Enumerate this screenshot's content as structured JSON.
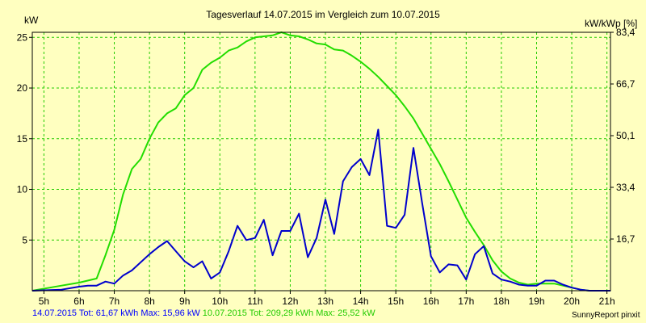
{
  "chart_data": {
    "type": "line",
    "title": "Tagesverlauf 14.07.2015 im Vergleich zum 10.07.2015",
    "ylabel": "kW",
    "y2label": "kW/kWp [%]",
    "xlim": [
      4.67,
      21.1
    ],
    "ylim": [
      0,
      25.5
    ],
    "x_ticks": [
      5,
      6,
      7,
      8,
      9,
      10,
      11,
      12,
      13,
      14,
      15,
      16,
      17,
      18,
      19,
      20,
      21
    ],
    "x_tick_labels": [
      "5h",
      "6h",
      "7h",
      "8h",
      "9h",
      "10h",
      "11h",
      "12h",
      "13h",
      "14h",
      "15h",
      "16h",
      "17h",
      "18h",
      "19h",
      "20h",
      "21h"
    ],
    "y_ticks": [
      5,
      10,
      15,
      20,
      25
    ],
    "y_tick_labels": [
      "5",
      "10",
      "15",
      "20",
      "25"
    ],
    "y2_ticks": [
      5.1,
      10.2,
      15.3,
      20.4,
      25.5
    ],
    "y2_tick_labels": [
      "16,7",
      "33,4",
      "50,1",
      "66,7",
      "83,4"
    ],
    "grid": true,
    "series": [
      {
        "name": "14.07.2015",
        "color": "#0000cc",
        "x": [
          4.67,
          5.5,
          6.0,
          6.25,
          6.5,
          6.75,
          7.0,
          7.25,
          7.5,
          8.0,
          8.25,
          8.5,
          8.75,
          9.0,
          9.25,
          9.5,
          9.75,
          10.0,
          10.25,
          10.5,
          10.75,
          11.0,
          11.25,
          11.5,
          11.75,
          12.0,
          12.25,
          12.5,
          12.75,
          13.0,
          13.25,
          13.5,
          13.75,
          14.0,
          14.25,
          14.5,
          14.75,
          15.0,
          15.25,
          15.5,
          15.75,
          16.0,
          16.25,
          16.5,
          16.75,
          17.0,
          17.25,
          17.5,
          17.75,
          18.0,
          18.25,
          18.5,
          18.75,
          19.0,
          19.25,
          19.5,
          19.75,
          20.0,
          20.25,
          20.5,
          20.75,
          21.1
        ],
        "values": [
          0,
          0.1,
          0.4,
          0.5,
          0.5,
          0.9,
          0.7,
          1.5,
          2.0,
          3.6,
          4.3,
          4.9,
          3.9,
          2.9,
          2.3,
          2.9,
          1.2,
          1.8,
          3.9,
          6.4,
          5.0,
          5.2,
          7.0,
          3.5,
          5.9,
          5.9,
          7.6,
          3.3,
          5.2,
          9.0,
          5.6,
          10.8,
          12.2,
          13.0,
          11.4,
          15.9,
          6.4,
          6.2,
          7.5,
          14.1,
          8.6,
          3.4,
          1.8,
          2.6,
          2.5,
          1.1,
          3.6,
          4.4,
          1.7,
          1.1,
          0.9,
          0.6,
          0.5,
          0.5,
          1.0,
          1.0,
          0.6,
          0.3,
          0.1,
          0,
          0,
          0
        ]
      },
      {
        "name": "10.07.2015",
        "color": "#22dd00",
        "x": [
          4.67,
          5.5,
          6.0,
          6.5,
          6.75,
          7.0,
          7.25,
          7.5,
          7.75,
          8.0,
          8.25,
          8.5,
          8.75,
          9.0,
          9.25,
          9.5,
          9.75,
          10.0,
          10.25,
          10.5,
          10.75,
          11.0,
          11.25,
          11.5,
          11.75,
          12.0,
          12.25,
          12.5,
          12.75,
          13.0,
          13.25,
          13.5,
          13.75,
          14.0,
          14.25,
          14.5,
          14.75,
          15.0,
          15.25,
          15.5,
          15.75,
          16.0,
          16.25,
          16.5,
          16.75,
          17.0,
          17.25,
          17.5,
          17.75,
          18.0,
          18.25,
          18.5,
          18.75,
          19.0,
          19.25,
          19.5,
          19.75,
          20.0,
          20.25,
          20.5,
          20.75,
          21.1
        ],
        "values": [
          0,
          0.5,
          0.8,
          1.2,
          3.5,
          6.0,
          9.5,
          12.0,
          13.0,
          15.0,
          16.6,
          17.5,
          18.0,
          19.3,
          20.0,
          21.8,
          22.5,
          23.0,
          23.7,
          24.0,
          24.6,
          25.0,
          25.1,
          25.2,
          25.5,
          25.2,
          25.1,
          24.8,
          24.4,
          24.3,
          23.8,
          23.7,
          23.2,
          22.6,
          21.9,
          21.1,
          20.2,
          19.3,
          18.2,
          17.0,
          15.5,
          14.0,
          12.5,
          10.8,
          9.0,
          7.2,
          5.8,
          4.5,
          3.0,
          1.9,
          1.2,
          0.8,
          0.6,
          0.7,
          0.7,
          0.7,
          0.5,
          0.3,
          0.1,
          0,
          0,
          0
        ]
      }
    ]
  },
  "footer": {
    "series1": "14.07.2015 Tot: 61,67 kWh Max: 15,96 kW",
    "series2": "10.07.2015 Tot: 209,29 kWh Max: 25,52 kW",
    "credit": "SunnyReport pinxit"
  }
}
